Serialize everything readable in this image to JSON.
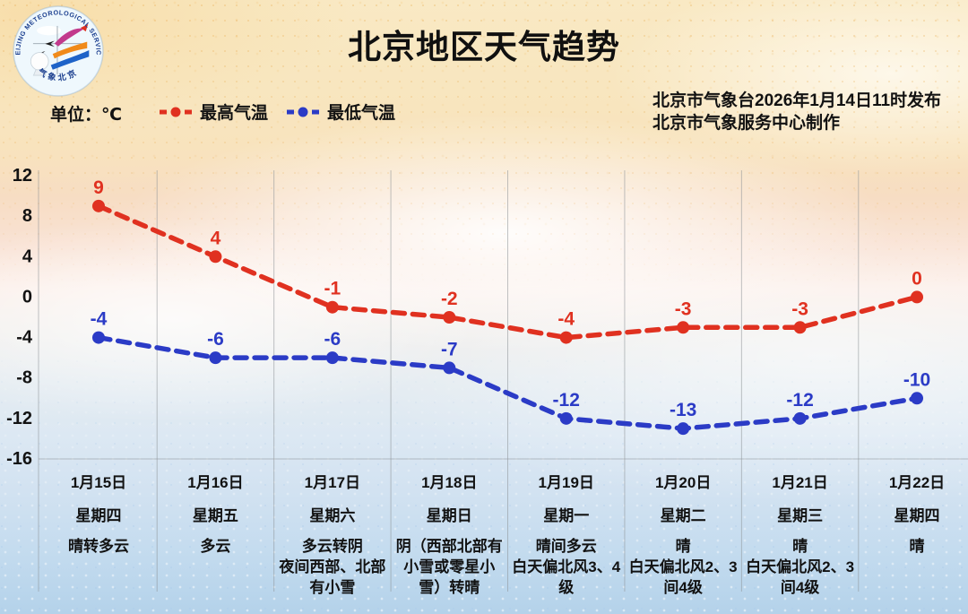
{
  "header": {
    "title": "北京地区天气趋势",
    "unit_label": "单位：℃",
    "issued_line1": "北京市气象台2026年1月14日11时发布",
    "issued_line2": "北京市气象服务中心制作",
    "logo_top_text": "BEIJING METEOROLOGICAL SERVICE",
    "logo_bottom_text": "气象北京"
  },
  "legend": {
    "max": {
      "label": "最高气温",
      "color": "#e03120"
    },
    "min": {
      "label": "最低气温",
      "color": "#2b3bc6"
    }
  },
  "chart_data": {
    "type": "line",
    "title": "北京地区天气趋势",
    "unit": "℃",
    "line_style": "dashed-with-round-markers",
    "grid": "vertical-day-separators-and-bottom-line",
    "ylim": [
      -16,
      12
    ],
    "y_ticks": [
      12,
      8,
      4,
      0,
      -4,
      -8,
      -12,
      -16
    ],
    "categories": [
      "1月15日",
      "1月16日",
      "1月17日",
      "1月18日",
      "1月19日",
      "1月20日",
      "1月21日",
      "1月22日"
    ],
    "weekdays": [
      "星期四",
      "星期五",
      "星期六",
      "星期日",
      "星期一",
      "星期二",
      "星期三",
      "星期四"
    ],
    "weather": [
      "晴转多云",
      "多云",
      "多云转阴\n夜间西部、北部\n有小雪",
      "阴（西部北部有\n小雪或零星小\n雪）转晴",
      "晴间多云\n白天偏北风3、4\n级",
      "晴\n白天偏北风2、3\n间4级",
      "晴\n白天偏北风2、3\n间4级",
      "晴"
    ],
    "series": [
      {
        "name": "最高气温",
        "color": "#e03120",
        "values": [
          9,
          4,
          -1,
          -2,
          -4,
          -3,
          -3,
          0
        ]
      },
      {
        "name": "最低气温",
        "color": "#2b3bc6",
        "values": [
          -4,
          -6,
          -6,
          -7,
          -12,
          -13,
          -12,
          -10
        ]
      }
    ]
  }
}
